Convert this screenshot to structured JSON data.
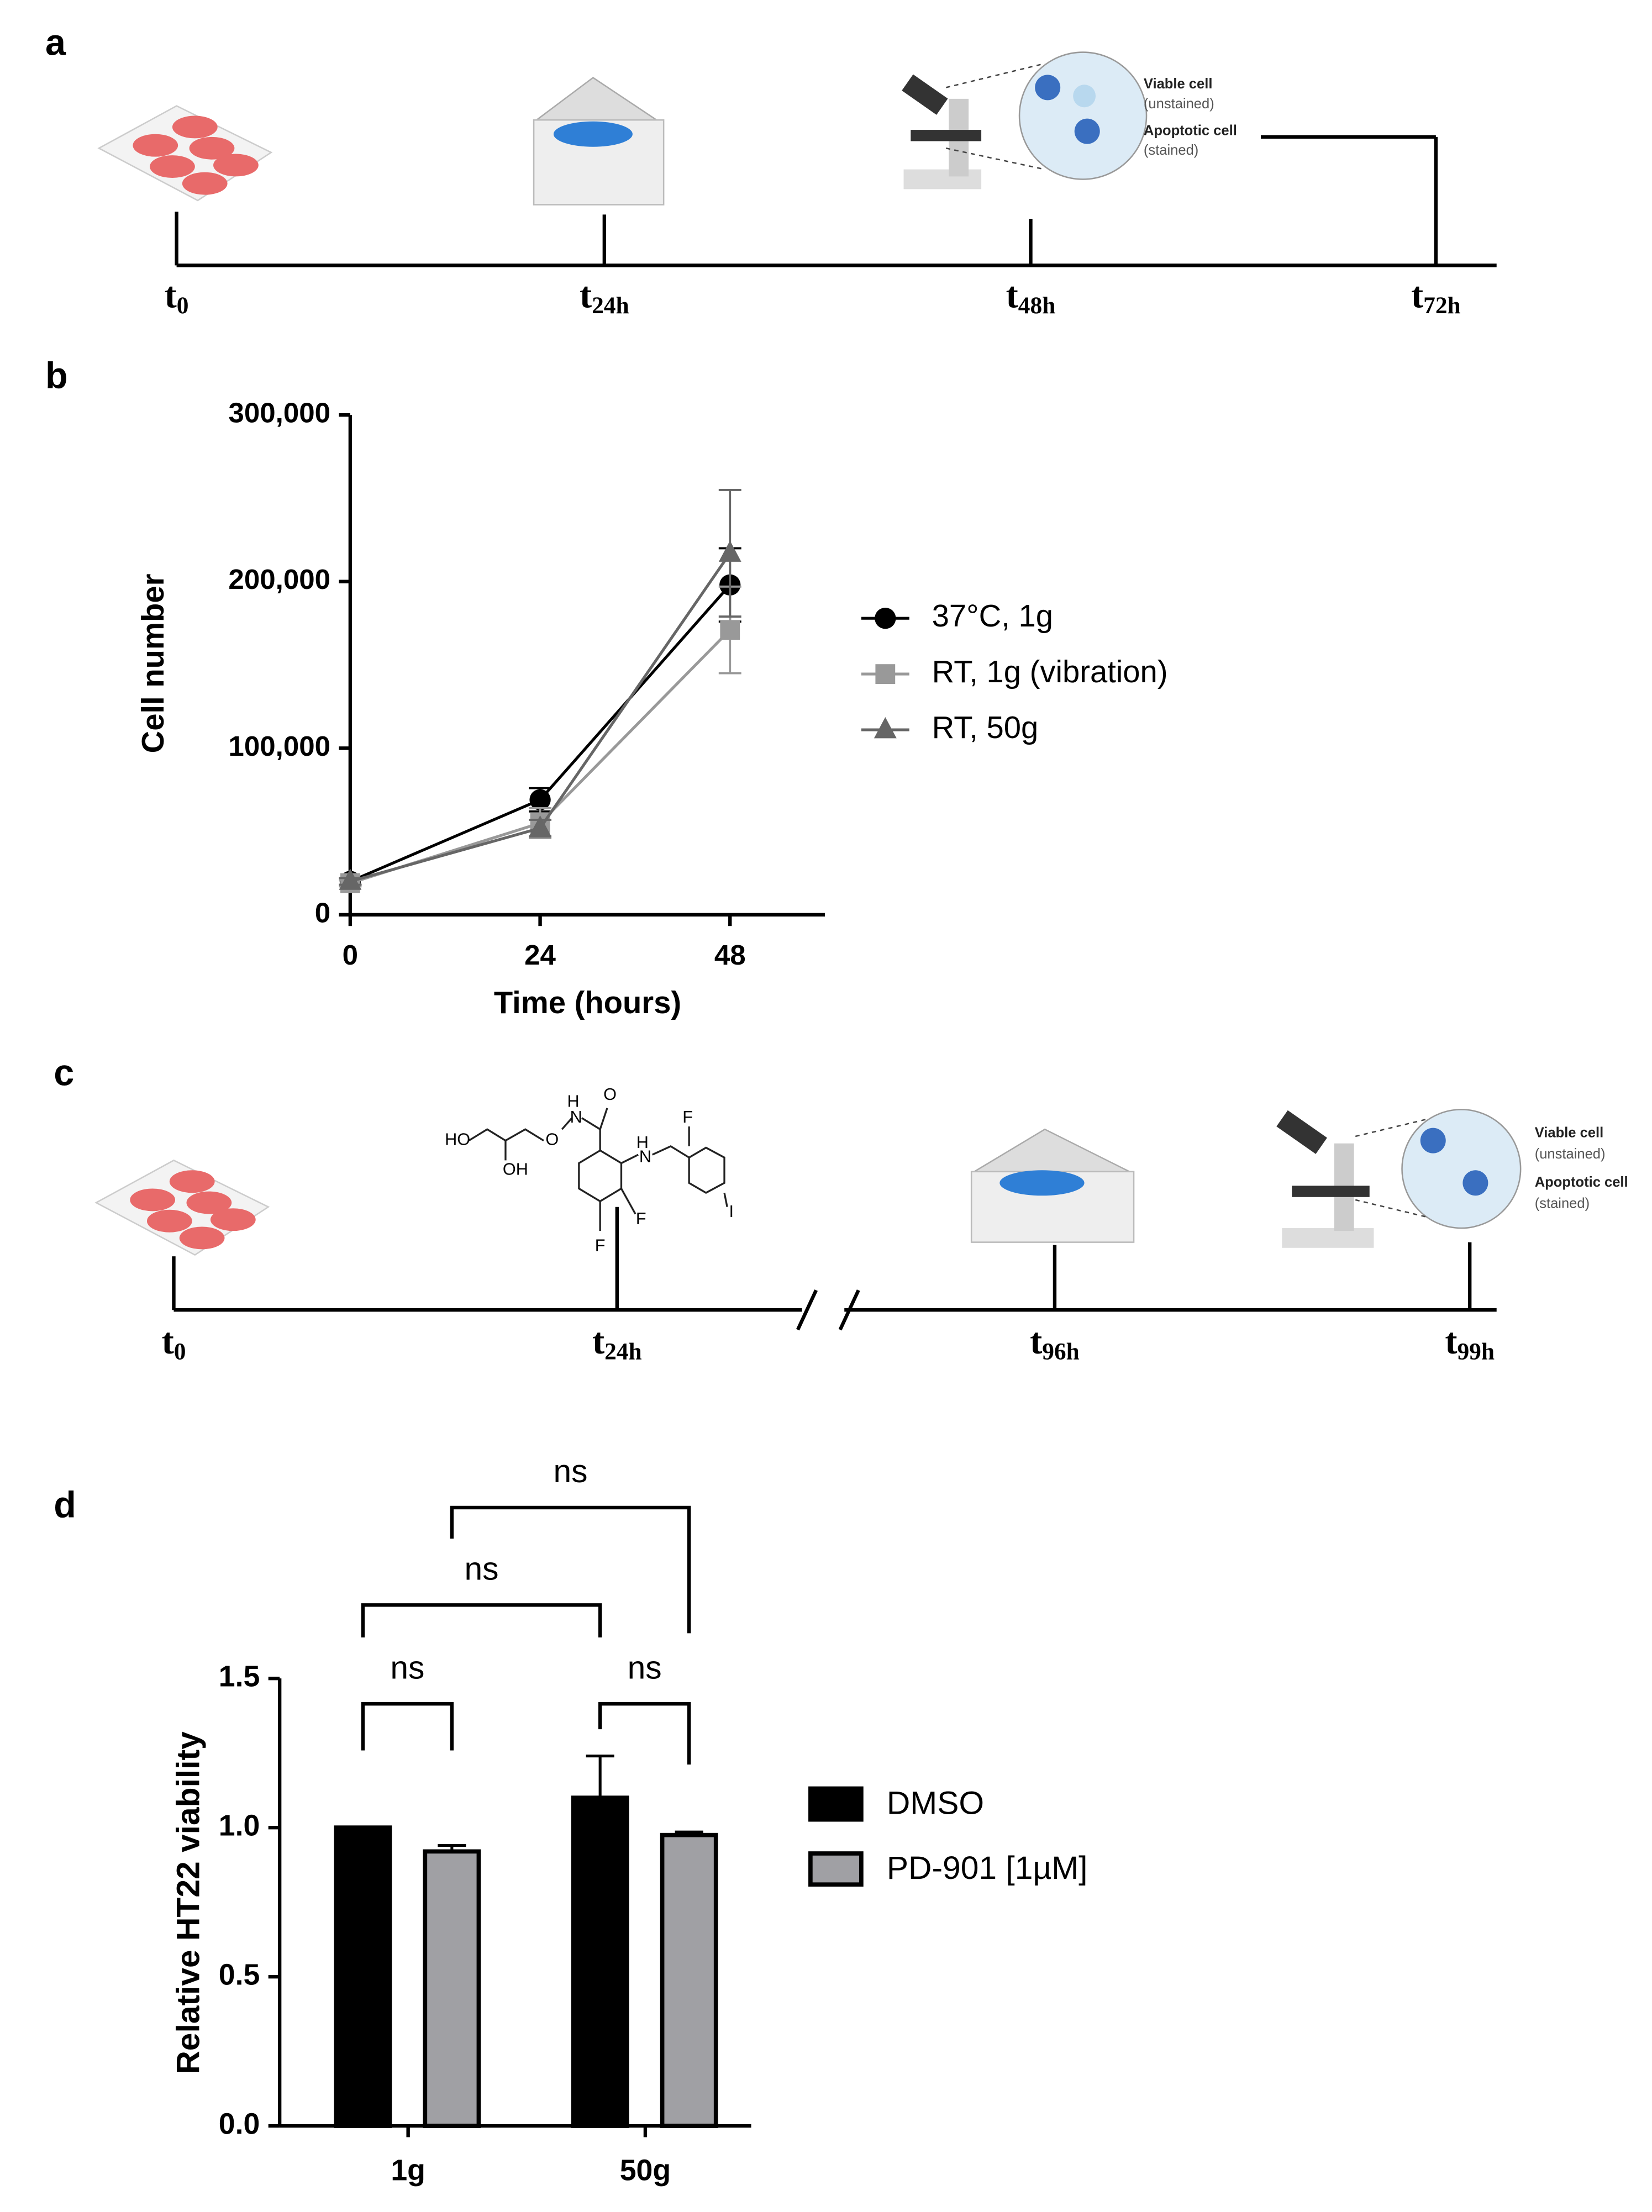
{
  "panels": [
    "a",
    "b",
    "c",
    "d"
  ],
  "timeline_a": {
    "labels": [
      {
        "base": "t",
        "sub": "0"
      },
      {
        "base": "t",
        "sub": "24h"
      },
      {
        "base": "t",
        "sub": "48h"
      },
      {
        "base": "t",
        "sub": "72h"
      }
    ],
    "callout": [
      "Viable cell",
      "(unstained)",
      "Apoptotic cell",
      "(stained)"
    ]
  },
  "timeline_c": {
    "labels": [
      {
        "base": "t",
        "sub": "0"
      },
      {
        "base": "t",
        "sub": "24h"
      },
      {
        "base": "t",
        "sub": "96h"
      },
      {
        "base": "t",
        "sub": "99h"
      }
    ],
    "callout": [
      "Viable cell",
      "(unstained)",
      "Apoptotic cell",
      "(stained)"
    ],
    "molecule": [
      "HO",
      "OH",
      "O",
      "H",
      "N",
      "O",
      "H",
      "N",
      "F",
      "F",
      "F",
      "I"
    ]
  },
  "chart_data": [
    {
      "type": "line",
      "x_label": "Time (hours)",
      "y_label": "Cell number",
      "x": [
        0,
        24,
        48
      ],
      "xlim": [
        0,
        60
      ],
      "xticks": [
        0,
        24,
        48
      ],
      "ylim": [
        0,
        300000
      ],
      "yticks": [
        0,
        {
          "value": 100000,
          "label": "100,000"
        },
        {
          "value": 200000,
          "label": "200,000"
        },
        {
          "value": 300000,
          "label": "300,000"
        }
      ],
      "series": [
        {
          "name": "37°C, 1g",
          "color": "#000000",
          "marker": "circle",
          "values": [
            20000,
            69000,
            198000
          ],
          "errors": [
            2000,
            7000,
            22000
          ]
        },
        {
          "name": "RT, 1g (vibration)",
          "color": "#999999",
          "marker": "square",
          "values": [
            19000,
            55000,
            171000
          ],
          "errors": [
            2000,
            9000,
            26000
          ]
        },
        {
          "name": "RT, 50g",
          "color": "#666666",
          "marker": "triangle",
          "values": [
            20000,
            52000,
            217000
          ],
          "errors": [
            2000,
            5000,
            38000
          ]
        }
      ]
    },
    {
      "type": "bar",
      "y_label": "Relative HT22 viability",
      "categories": [
        "1g",
        "50g"
      ],
      "ylim": [
        0,
        1.5
      ],
      "yticks": [
        {
          "value": 0,
          "label": "0.0"
        },
        0.5,
        {
          "value": 1,
          "label": "1.0"
        },
        1.5
      ],
      "series": [
        {
          "name": "DMSO",
          "color": "#000000",
          "values": [
            1.0,
            1.1
          ],
          "errors": [
            0,
            0.14
          ]
        },
        {
          "name": "PD-901 [1µM]",
          "color": "#a0a0a4",
          "values": [
            0.92,
            0.975
          ],
          "errors": [
            0.02,
            0.01
          ]
        }
      ],
      "annotations": [
        "ns",
        "ns",
        "ns",
        "ns"
      ]
    }
  ]
}
